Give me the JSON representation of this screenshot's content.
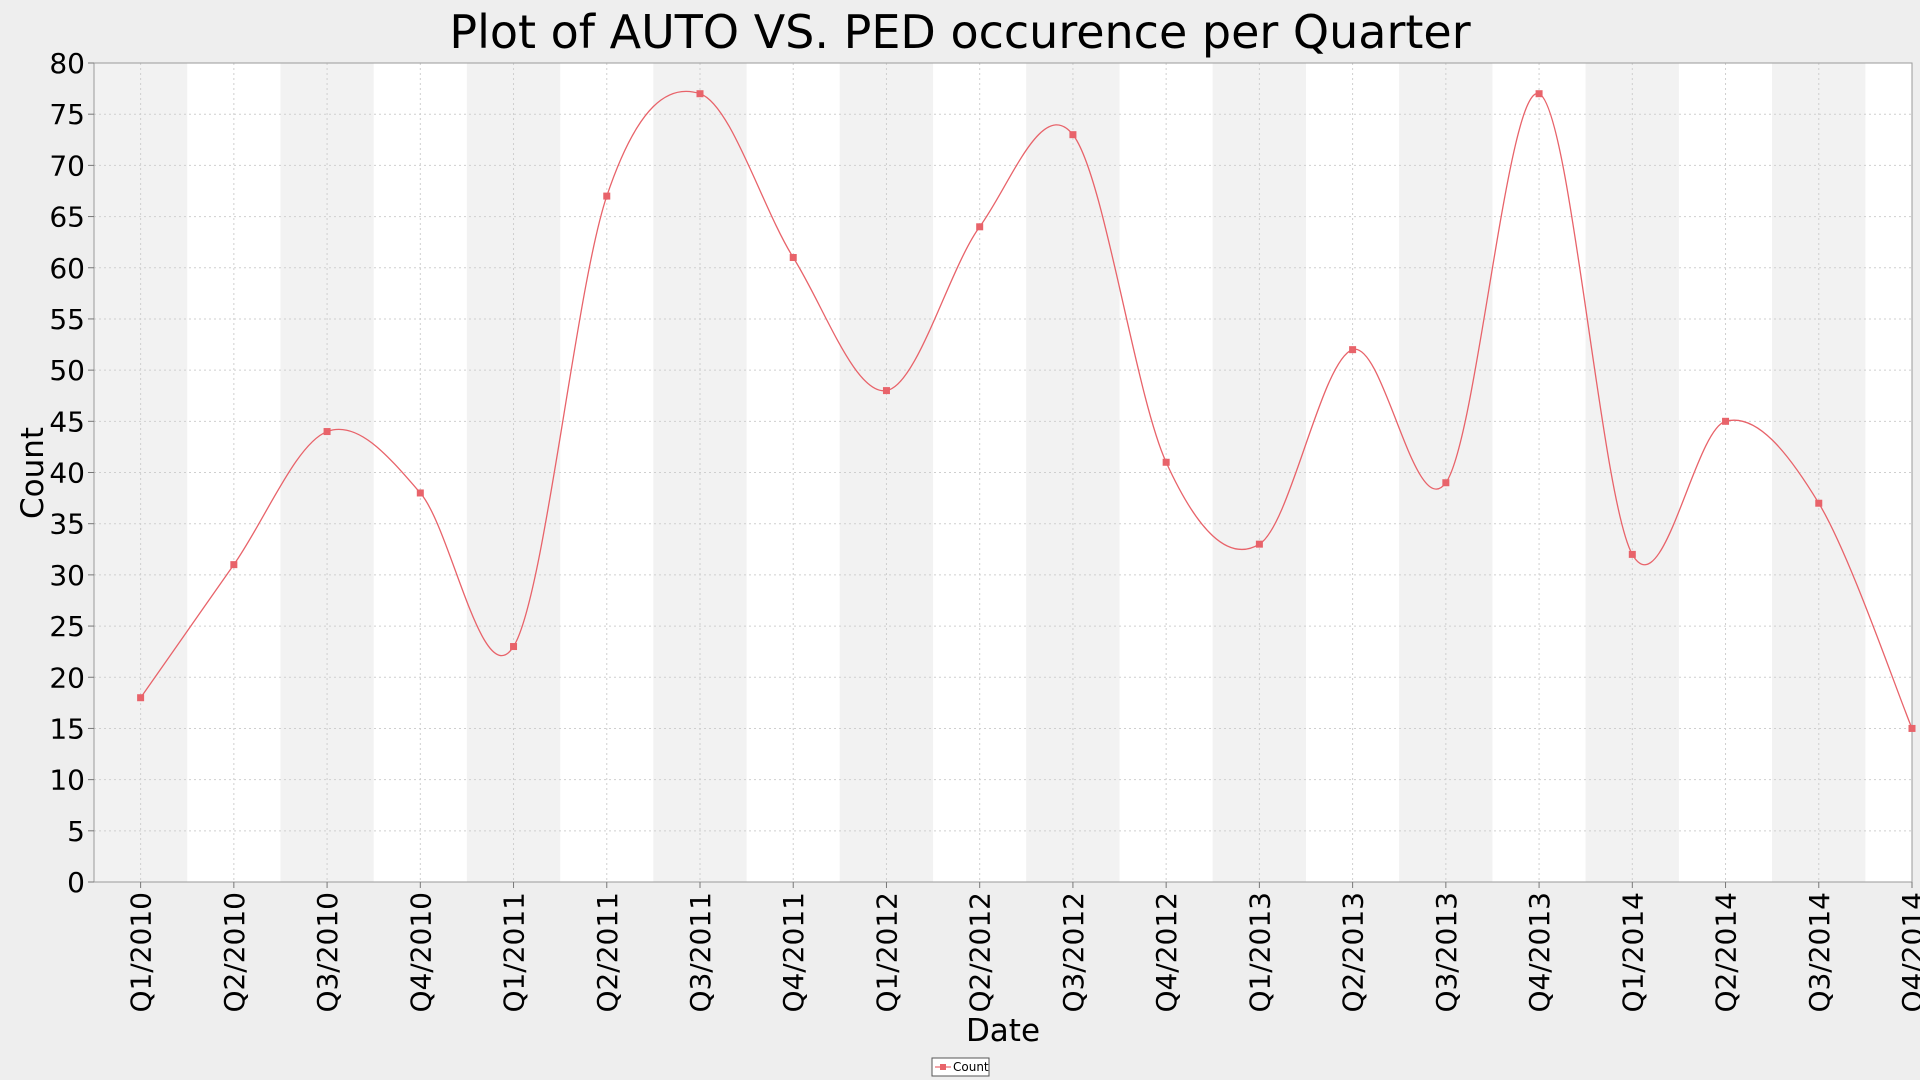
{
  "chart_data": {
    "type": "line",
    "title": "Plot of AUTO VS. PED occurence per Quarter",
    "xlabel": "Date",
    "ylabel": "Count",
    "ylim": [
      0,
      80
    ],
    "ytick_step": 5,
    "grid": true,
    "categories": [
      "Q1/2010",
      "Q2/2010",
      "Q3/2010",
      "Q4/2010",
      "Q1/2011",
      "Q2/2011",
      "Q3/2011",
      "Q4/2011",
      "Q1/2012",
      "Q2/2012",
      "Q3/2012",
      "Q4/2012",
      "Q1/2013",
      "Q2/2013",
      "Q3/2013",
      "Q4/2013",
      "Q1/2014",
      "Q2/2014",
      "Q3/2014",
      "Q4/2014"
    ],
    "series": [
      {
        "name": "Count",
        "color": "#e8636a",
        "values": [
          18,
          31,
          44,
          38,
          23,
          67,
          77,
          61,
          48,
          64,
          73,
          41,
          33,
          52,
          39,
          77,
          32,
          45,
          37,
          15
        ]
      }
    ],
    "legend": {
      "position": "bottom-center"
    },
    "colors": {
      "band_gray": "#f2f2f2",
      "band_white": "#ffffff",
      "background": "#eeeeee"
    }
  }
}
